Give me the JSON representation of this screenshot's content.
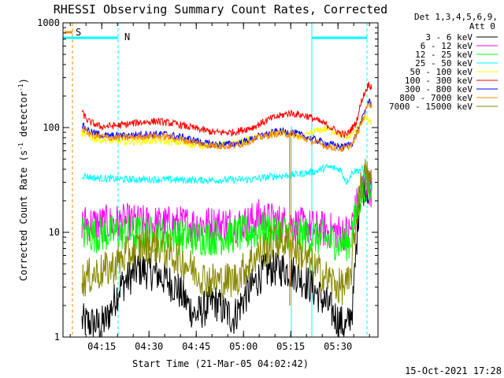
{
  "chart_data": {
    "type": "line",
    "title": "RHESSI Observing Summary Count Rates, Corrected",
    "xlabel": "Start Time (21-Mar-05 04:02:42)",
    "ylabel_main": "Corrected Count Rate (s",
    "ylabel_sup1": "-1",
    "ylabel_mid": " detector",
    "ylabel_sup2": "-1",
    "ylabel_end": ")",
    "yscale": "log",
    "ylim": [
      1,
      1000
    ],
    "xlim_minutes": [
      0,
      100
    ],
    "y_ticks": [
      "1",
      "10",
      "100",
      "1000"
    ],
    "x_ticks": [
      {
        "label": "04:15",
        "minute": 12.3
      },
      {
        "label": "04:30",
        "minute": 27.3
      },
      {
        "label": "04:45",
        "minute": 42.3
      },
      {
        "label": "05:00",
        "minute": 57.3
      },
      {
        "label": "05:15",
        "minute": 72.3
      },
      {
        "label": "05:30",
        "minute": 87.3
      }
    ],
    "legend_header": [
      "Det 1,3,4,5,6,9,",
      "Att 0"
    ],
    "series": [
      {
        "name": "3 - 6 keV",
        "color": "#000000",
        "knots": [
          [
            6,
            1.4
          ],
          [
            12,
            1.3
          ],
          [
            14,
            1.5
          ],
          [
            18,
            3
          ],
          [
            24,
            4.5
          ],
          [
            30,
            4
          ],
          [
            36,
            3
          ],
          [
            42,
            1.6
          ],
          [
            48,
            2.2
          ],
          [
            54,
            1.5
          ],
          [
            58,
            2.5
          ],
          [
            63,
            4
          ],
          [
            66,
            4.5
          ],
          [
            70,
            4.5
          ],
          [
            74,
            4
          ],
          [
            79,
            3
          ],
          [
            84,
            2
          ],
          [
            87,
            1.5
          ],
          [
            90,
            1.2
          ],
          [
            92,
            2
          ],
          [
            94,
            20
          ],
          [
            96,
            30
          ],
          [
            98,
            22
          ]
        ]
      },
      {
        "name": "6 - 12 keV",
        "color": "#ff00ff",
        "knots": [
          [
            6,
            12.5
          ],
          [
            10,
            12
          ],
          [
            20,
            12.5
          ],
          [
            30,
            12
          ],
          [
            40,
            12
          ],
          [
            50,
            12
          ],
          [
            58,
            12
          ],
          [
            62,
            14
          ],
          [
            66,
            13
          ],
          [
            72,
            12
          ],
          [
            80,
            11
          ],
          [
            88,
            10
          ],
          [
            91,
            10
          ],
          [
            94,
            22
          ],
          [
            96,
            32
          ],
          [
            98,
            25
          ]
        ]
      },
      {
        "name": "12 - 25 keV",
        "color": "#00ff00",
        "knots": [
          [
            6,
            10
          ],
          [
            10,
            9.5
          ],
          [
            20,
            10
          ],
          [
            30,
            9.5
          ],
          [
            40,
            9
          ],
          [
            50,
            9
          ],
          [
            60,
            10
          ],
          [
            66,
            11
          ],
          [
            72,
            10
          ],
          [
            80,
            9
          ],
          [
            88,
            8
          ],
          [
            91,
            8
          ],
          [
            94,
            20
          ],
          [
            96,
            30
          ],
          [
            98,
            24
          ]
        ]
      },
      {
        "name": "25 - 50 keV",
        "color": "#00ffff",
        "knots": [
          [
            6,
            35
          ],
          [
            10,
            33
          ],
          [
            20,
            32
          ],
          [
            30,
            32
          ],
          [
            40,
            31.5
          ],
          [
            50,
            31.5
          ],
          [
            60,
            32
          ],
          [
            66,
            34
          ],
          [
            72,
            35
          ],
          [
            80,
            38
          ],
          [
            84,
            42
          ],
          [
            88,
            40
          ],
          [
            90,
            30
          ],
          [
            92,
            38
          ],
          [
            95,
            40
          ],
          [
            97,
            30
          ],
          [
            98,
            26
          ]
        ]
      },
      {
        "name": "50 - 100 keV",
        "color": "#ffff00",
        "knots": [
          [
            6,
            88
          ],
          [
            10,
            78
          ],
          [
            20,
            73
          ],
          [
            30,
            75
          ],
          [
            36,
            72
          ],
          [
            42,
            68
          ],
          [
            50,
            67
          ],
          [
            56,
            72
          ],
          [
            62,
            82
          ],
          [
            68,
            88
          ],
          [
            72,
            86
          ],
          [
            76,
            80
          ],
          [
            80,
            92
          ],
          [
            84,
            98
          ],
          [
            88,
            86
          ],
          [
            90,
            78
          ],
          [
            93,
            95
          ],
          [
            96,
            125
          ],
          [
            98,
            110
          ]
        ]
      },
      {
        "name": "100 - 300 keV",
        "color": "#ff0000",
        "knots": [
          [
            6,
            140
          ],
          [
            8,
            115
          ],
          [
            12,
            102
          ],
          [
            18,
            105
          ],
          [
            24,
            112
          ],
          [
            30,
            115
          ],
          [
            36,
            108
          ],
          [
            42,
            98
          ],
          [
            48,
            90
          ],
          [
            54,
            90
          ],
          [
            60,
            100
          ],
          [
            66,
            122
          ],
          [
            72,
            138
          ],
          [
            78,
            128
          ],
          [
            84,
            105
          ],
          [
            88,
            88
          ],
          [
            90,
            85
          ],
          [
            93,
            110
          ],
          [
            95,
            190
          ],
          [
            97,
            260
          ],
          [
            98,
            245
          ]
        ]
      },
      {
        "name": "300 - 800 keV",
        "color": "#0000ff",
        "knots": [
          [
            6,
            105
          ],
          [
            9,
            90
          ],
          [
            14,
            83
          ],
          [
            20,
            84
          ],
          [
            27,
            87
          ],
          [
            33,
            86
          ],
          [
            40,
            78
          ],
          [
            46,
            70
          ],
          [
            52,
            69
          ],
          [
            57,
            72
          ],
          [
            62,
            82
          ],
          [
            68,
            92
          ],
          [
            73,
            90
          ],
          [
            78,
            80
          ],
          [
            84,
            70
          ],
          [
            89,
            65
          ],
          [
            92,
            72
          ],
          [
            95,
            120
          ],
          [
            97,
            180
          ],
          [
            98,
            165
          ]
        ]
      },
      {
        "name": "800 - 7000 keV",
        "color": "#ff8800",
        "knots": [
          [
            6,
            98
          ],
          [
            9,
            85
          ],
          [
            14,
            80
          ],
          [
            20,
            80
          ],
          [
            27,
            83
          ],
          [
            33,
            82
          ],
          [
            40,
            74
          ],
          [
            46,
            68
          ],
          [
            52,
            66
          ],
          [
            57,
            70
          ],
          [
            62,
            80
          ],
          [
            68,
            88
          ],
          [
            73,
            86
          ],
          [
            78,
            76
          ],
          [
            84,
            66
          ],
          [
            89,
            62
          ],
          [
            92,
            70
          ],
          [
            95,
            115
          ],
          [
            97,
            175
          ],
          [
            98,
            160
          ]
        ]
      },
      {
        "name": "7000 - 15000 keV",
        "color": "#888800",
        "knots": [
          [
            6,
            3.5
          ],
          [
            10,
            4
          ],
          [
            15,
            4.5
          ],
          [
            20,
            6
          ],
          [
            25,
            7.5
          ],
          [
            30,
            7.5
          ],
          [
            35,
            6
          ],
          [
            40,
            4.8
          ],
          [
            45,
            3.6
          ],
          [
            50,
            3.4
          ],
          [
            55,
            3.6
          ],
          [
            60,
            5.5
          ],
          [
            64,
            7
          ],
          [
            68,
            8.5
          ],
          [
            72,
            8
          ],
          [
            76,
            6
          ],
          [
            80,
            4.5
          ],
          [
            84,
            3.6
          ],
          [
            88,
            3
          ],
          [
            91,
            3.2
          ],
          [
            94,
            24
          ],
          [
            96,
            35
          ],
          [
            98,
            28
          ]
        ]
      }
    ],
    "flag_labels": {
      "saa": "S",
      "night": "N"
    },
    "footer_date": "15-Oct-2021 17:28"
  }
}
